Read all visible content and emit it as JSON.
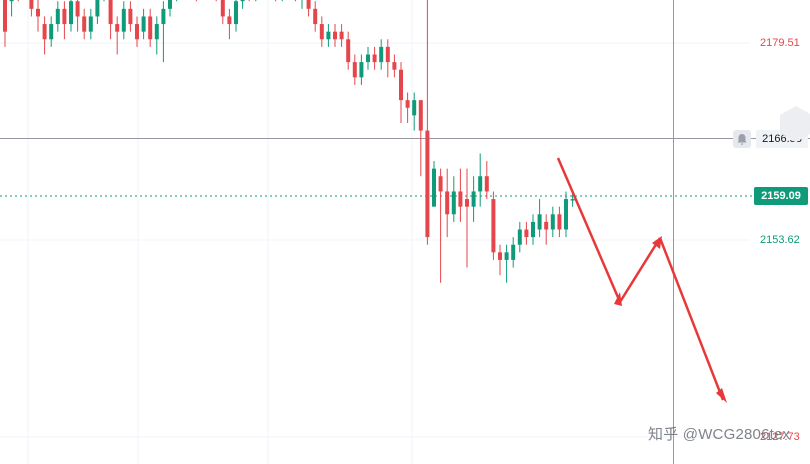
{
  "chart_data": {
    "type": "candlestick",
    "price_labels": [
      {
        "value": 2179.51,
        "text": "2179.51",
        "color": "#e5464b"
      },
      {
        "value": 2153.62,
        "text": "2153.62",
        "color": "#0f9b7a"
      },
      {
        "value": 2127.73,
        "text": "2127.73",
        "color": "#e5464b"
      }
    ],
    "crosshair_price": "2166.58",
    "current_price": "2159.09",
    "up_color": "#0f9b7a",
    "down_color": "#e5464b",
    "candles": [
      [
        2186,
        2181,
        2187,
        2179
      ],
      [
        2185,
        2189,
        2190,
        2183
      ],
      [
        2189,
        2188,
        2191,
        2185
      ],
      [
        2188,
        2189,
        2190,
        2186
      ],
      [
        2189,
        2184,
        2189,
        2183
      ],
      [
        2184,
        2183,
        2186,
        2181
      ],
      [
        2182,
        2180,
        2183,
        2178
      ],
      [
        2180,
        2182,
        2183,
        2179
      ],
      [
        2182,
        2184,
        2185,
        2181
      ],
      [
        2184,
        2182,
        2185,
        2180
      ],
      [
        2182,
        2185,
        2186,
        2181
      ],
      [
        2185,
        2183,
        2186,
        2181
      ],
      [
        2183,
        2181,
        2184,
        2180
      ],
      [
        2181,
        2183,
        2184,
        2180
      ],
      [
        2183,
        2186,
        2187,
        2182
      ],
      [
        2186,
        2187,
        2189,
        2185
      ],
      [
        2186,
        2182,
        2187,
        2180
      ],
      [
        2182,
        2181,
        2183,
        2178
      ],
      [
        2181,
        2184,
        2185,
        2180
      ],
      [
        2184,
        2182,
        2185,
        2181
      ],
      [
        2182,
        2180,
        2183,
        2179
      ],
      [
        2181,
        2183,
        2184,
        2180
      ],
      [
        2183,
        2180,
        2184,
        2179
      ],
      [
        2180,
        2182,
        2183,
        2178
      ],
      [
        2182,
        2184,
        2185,
        2177
      ],
      [
        2184,
        2187,
        2192,
        2183
      ],
      [
        2187,
        2189,
        2191,
        2185
      ],
      [
        2189,
        2191,
        2192,
        2188
      ],
      [
        2191,
        2189,
        2192,
        2187
      ],
      [
        2189,
        2187,
        2190,
        2185
      ],
      [
        2187,
        2190,
        2192,
        2186
      ],
      [
        2190,
        2188,
        2191,
        2186
      ],
      [
        2188,
        2186,
        2189,
        2185
      ],
      [
        2186,
        2183,
        2187,
        2182
      ],
      [
        2183,
        2182,
        2184,
        2180
      ],
      [
        2182,
        2185,
        2186,
        2181
      ],
      [
        2185,
        2188,
        2189,
        2184
      ],
      [
        2188,
        2186,
        2189,
        2185
      ],
      [
        2186,
        2187,
        2188,
        2185
      ],
      [
        2187,
        2189,
        2190,
        2186
      ],
      [
        2189,
        2188,
        2190,
        2186
      ],
      [
        2188,
        2186,
        2189,
        2185
      ],
      [
        2186,
        2189,
        2191,
        2185
      ],
      [
        2189,
        2188,
        2190,
        2187
      ],
      [
        2188,
        2186,
        2189,
        2185
      ],
      [
        2186,
        2187,
        2189,
        2184
      ],
      [
        2187,
        2184,
        2188,
        2183
      ],
      [
        2184,
        2182,
        2185,
        2181
      ],
      [
        2182,
        2180,
        2183,
        2179
      ],
      [
        2180,
        2181,
        2182,
        2179
      ],
      [
        2181,
        2180,
        2182,
        2179
      ],
      [
        2181,
        2180,
        2182,
        2179
      ],
      [
        2180,
        2177,
        2181,
        2176
      ],
      [
        2177,
        2175,
        2178,
        2174
      ],
      [
        2175,
        2177,
        2178,
        2174
      ],
      [
        2177,
        2178,
        2179,
        2176
      ],
      [
        2178,
        2177,
        2179,
        2176
      ],
      [
        2177,
        2179,
        2180,
        2176
      ],
      [
        2179,
        2177,
        2180,
        2175
      ],
      [
        2177,
        2176,
        2178,
        2175
      ],
      [
        2176,
        2172,
        2177,
        2169
      ],
      [
        2172,
        2171,
        2173,
        2169
      ],
      [
        2170,
        2172,
        2173,
        2168
      ],
      [
        2172,
        2168,
        2172,
        2162
      ],
      [
        2168,
        2154,
        2189,
        2153
      ],
      [
        2158,
        2163,
        2164,
        2160
      ],
      [
        2162,
        2160,
        2163,
        2148
      ],
      [
        2160,
        2157,
        2163,
        2154
      ],
      [
        2157,
        2160,
        2162,
        2156
      ],
      [
        2160,
        2158,
        2163,
        2156
      ],
      [
        2159,
        2158,
        2163,
        2150
      ],
      [
        2158,
        2160,
        2162,
        2156
      ],
      [
        2160,
        2162,
        2165,
        2158
      ],
      [
        2162,
        2160,
        2164,
        2159
      ],
      [
        2159,
        2152,
        2160,
        2151
      ],
      [
        2152,
        2151,
        2153,
        2149
      ],
      [
        2151,
        2152,
        2153,
        2148
      ],
      [
        2151,
        2153,
        2154,
        2150
      ],
      [
        2153,
        2155,
        2156,
        2152
      ],
      [
        2155,
        2154,
        2156,
        2153
      ],
      [
        2154,
        2156,
        2157,
        2153
      ],
      [
        2155,
        2157,
        2159,
        2154
      ],
      [
        2156,
        2155,
        2157,
        2153
      ],
      [
        2155,
        2157,
        2158,
        2154
      ],
      [
        2157,
        2155,
        2158,
        2154
      ],
      [
        2155,
        2159,
        2160,
        2154
      ],
      [
        2159,
        2159,
        2160,
        2158
      ]
    ],
    "annotations": "two red forecast arrows drawn downward after the last candle",
    "grid": true
  },
  "watermark": "知乎 @WCG2806tex"
}
